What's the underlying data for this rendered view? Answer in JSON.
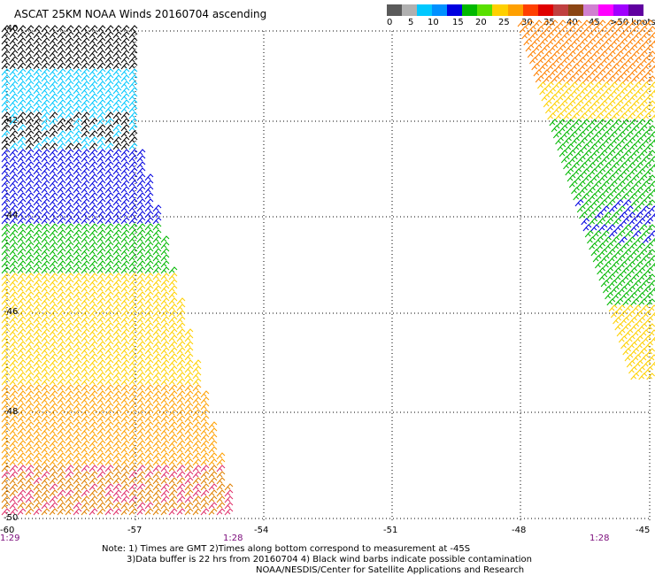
{
  "title": "ASCAT 25KM NOAA Winds 20160704 ascending",
  "colorbar": {
    "labels": [
      "0",
      "5",
      "10",
      "15",
      "20",
      "25",
      "30",
      "35",
      "40",
      "45",
      ">50 knots"
    ],
    "colors": [
      "#5a5a5a",
      "#b0b0b0",
      "#00c8ff",
      "#0090ff",
      "#0000e0",
      "#00b800",
      "#58e000",
      "#ffd000",
      "#ffa000",
      "#ff4000",
      "#e00000",
      "#c04040",
      "#8b4513",
      "#d080d0",
      "#ff00ff",
      "#a000ff",
      "#6000a0"
    ]
  },
  "map": {
    "lat_labels": [
      "-40",
      "-42",
      "-44",
      "-46",
      "-48",
      "-50"
    ],
    "lon_labels": [
      "-60",
      "-57",
      "-54",
      "-51",
      "-48",
      "-45"
    ],
    "lat_range": [
      -40,
      -50
    ],
    "lon_range": [
      -60,
      -45
    ],
    "times": [
      "1:29",
      "1:28",
      "1:28"
    ]
  },
  "notes": [
    "Note: 1) Times are GMT 2)Times along bottom correspond to measurement at -45S",
    "3)Data buffer is 22 hrs from 20160704 4) Black wind barbs indicate possible contamination",
    "NOAA/NESDIS/Center for Satellite Applications and Research"
  ]
}
